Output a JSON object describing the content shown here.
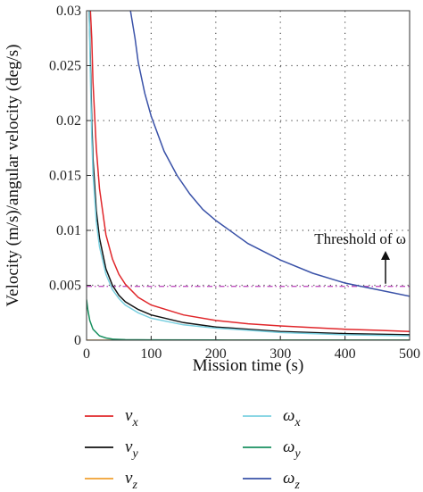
{
  "chart_data": {
    "type": "line",
    "xlabel": "Mission time (s)",
    "ylabel": "Velocity (m/s)/angular velocity (deg/s)",
    "xlim": [
      0,
      500
    ],
    "ylim": [
      0,
      0.03
    ],
    "x_ticks": [
      "0",
      "100",
      "200",
      "300",
      "400",
      "500"
    ],
    "y_ticks": [
      "0",
      "0.005",
      "0.01",
      "0.015",
      "0.02",
      "0.025",
      "0.03"
    ],
    "grid": "dotted",
    "threshold": {
      "label": "Threshold of ω",
      "value": 0.0049,
      "color": "#c050c0"
    },
    "series": [
      {
        "name": "v_x",
        "color": "#e0262a",
        "x": [
          6,
          8,
          10,
          15,
          20,
          30,
          40,
          50,
          60,
          80,
          100,
          150,
          200,
          250,
          300,
          350,
          400,
          450,
          500
        ],
        "y": [
          0.03,
          0.0275,
          0.0235,
          0.0175,
          0.0138,
          0.0096,
          0.0074,
          0.006,
          0.0051,
          0.0039,
          0.0032,
          0.0023,
          0.0018,
          0.0015,
          0.0013,
          0.00115,
          0.001,
          0.0009,
          0.0008
        ]
      },
      {
        "name": "v_y",
        "color": "#111111",
        "x": [
          4,
          6,
          8,
          10,
          15,
          20,
          30,
          40,
          50,
          60,
          80,
          100,
          150,
          200,
          250,
          300,
          400,
          500
        ],
        "y": [
          0.03,
          0.0255,
          0.02,
          0.0165,
          0.0118,
          0.0093,
          0.0065,
          0.005,
          0.0041,
          0.0035,
          0.0028,
          0.0023,
          0.0016,
          0.0012,
          0.001,
          0.0008,
          0.0006,
          0.0005
        ]
      },
      {
        "name": "v_z",
        "color": "#f0a030",
        "x": [
          0,
          50,
          100,
          200,
          300,
          400,
          500
        ],
        "y": [
          0,
          0,
          0,
          0,
          0,
          0,
          0
        ]
      },
      {
        "name": "ω_x",
        "color": "#7ad0e0",
        "x": [
          4,
          6,
          8,
          10,
          15,
          20,
          30,
          40,
          50,
          60,
          80,
          100,
          150,
          200,
          250,
          300,
          400,
          500
        ],
        "y": [
          0.03,
          0.024,
          0.0185,
          0.0152,
          0.0108,
          0.0085,
          0.006,
          0.0046,
          0.0038,
          0.0032,
          0.0025,
          0.002,
          0.0014,
          0.0011,
          0.0009,
          0.0007,
          0.0005,
          0.0004
        ]
      },
      {
        "name": "ω_y",
        "color": "#1a9060",
        "x": [
          0,
          2,
          5,
          10,
          20,
          30,
          40,
          60,
          100,
          200,
          300,
          400,
          500
        ],
        "y": [
          0.0037,
          0.0028,
          0.0018,
          0.001,
          0.0004,
          0.0002,
          0.0001,
          5e-05,
          3e-05,
          2e-05,
          1e-05,
          1e-05,
          1e-05
        ]
      },
      {
        "name": "ω_z",
        "color": "#3a52a8",
        "x": [
          68,
          75,
          80,
          90,
          100,
          120,
          140,
          160,
          180,
          200,
          250,
          300,
          350,
          400,
          450,
          500
        ],
        "y": [
          0.03,
          0.0275,
          0.0253,
          0.0225,
          0.0204,
          0.0172,
          0.015,
          0.0133,
          0.0119,
          0.0109,
          0.0088,
          0.0073,
          0.0061,
          0.0052,
          0.0046,
          0.004
        ]
      }
    ],
    "legend": {
      "placement": "bottom",
      "items": [
        {
          "base": "v",
          "sub": "x",
          "color": "#e0262a"
        },
        {
          "base": "v",
          "sub": "y",
          "color": "#111111"
        },
        {
          "base": "v",
          "sub": "z",
          "color": "#f0a030"
        },
        {
          "base": "ω",
          "sub": "x",
          "color": "#7ad0e0"
        },
        {
          "base": "ω",
          "sub": "y",
          "color": "#1a9060"
        },
        {
          "base": "ω",
          "sub": "z",
          "color": "#3a52a8"
        }
      ]
    }
  }
}
